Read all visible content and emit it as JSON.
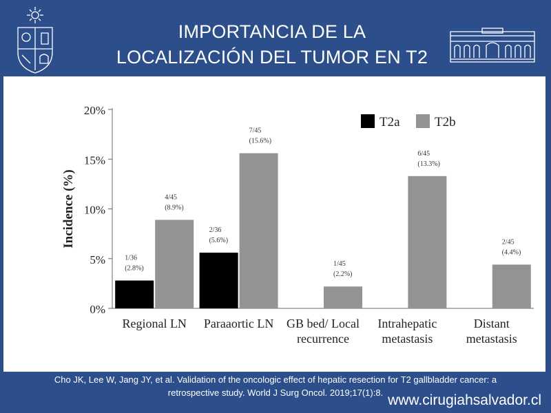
{
  "slide": {
    "title_line1": "IMPORTANCIA DE LA",
    "title_line2": "LOCALIZACIÓN DEL TUMOR EN T2",
    "citation_line1": "Cho JK, Lee W, Jang JY, et al. Validation of the oncologic effect of hepatic resection for T2 gallbladder cancer: a",
    "citation_line2": "retrospective study. World J Surg Oncol. 2019;17(1):8.",
    "website": "www.cirugiahsalvador.cl"
  },
  "colors": {
    "background": "#2c4f8b",
    "t2a": "#000000",
    "t2b": "#939393"
  },
  "chart_data": {
    "type": "bar",
    "title": "",
    "xlabel": "",
    "ylabel": "Incidence (%)",
    "ylim": [
      0,
      20
    ],
    "yticks": [
      "0%",
      "5%",
      "10%",
      "15%",
      "20%"
    ],
    "legend_position": "top-right",
    "categories": [
      [
        "Regional LN"
      ],
      [
        "Paraaortic LN"
      ],
      [
        "GB bed/ Local",
        "recurrence"
      ],
      [
        "Intrahepatic",
        "metastasis"
      ],
      [
        "Distant",
        "metastasis"
      ]
    ],
    "series": [
      {
        "name": "T2a",
        "values": [
          2.8,
          5.6,
          null,
          null,
          null
        ],
        "labels": [
          [
            "1/36",
            "(2.8%)"
          ],
          [
            "2/36",
            "(5.6%)"
          ],
          null,
          null,
          null
        ]
      },
      {
        "name": "T2b",
        "values": [
          8.9,
          15.6,
          2.2,
          13.3,
          4.4
        ],
        "labels": [
          [
            "4/45",
            "(8.9%)"
          ],
          [
            "7/45",
            "(15.6%)"
          ],
          [
            "1/45",
            "(2.2%)"
          ],
          [
            "6/45",
            "(13.3%)"
          ],
          [
            "2/45",
            "(4.4%)"
          ]
        ]
      }
    ]
  }
}
